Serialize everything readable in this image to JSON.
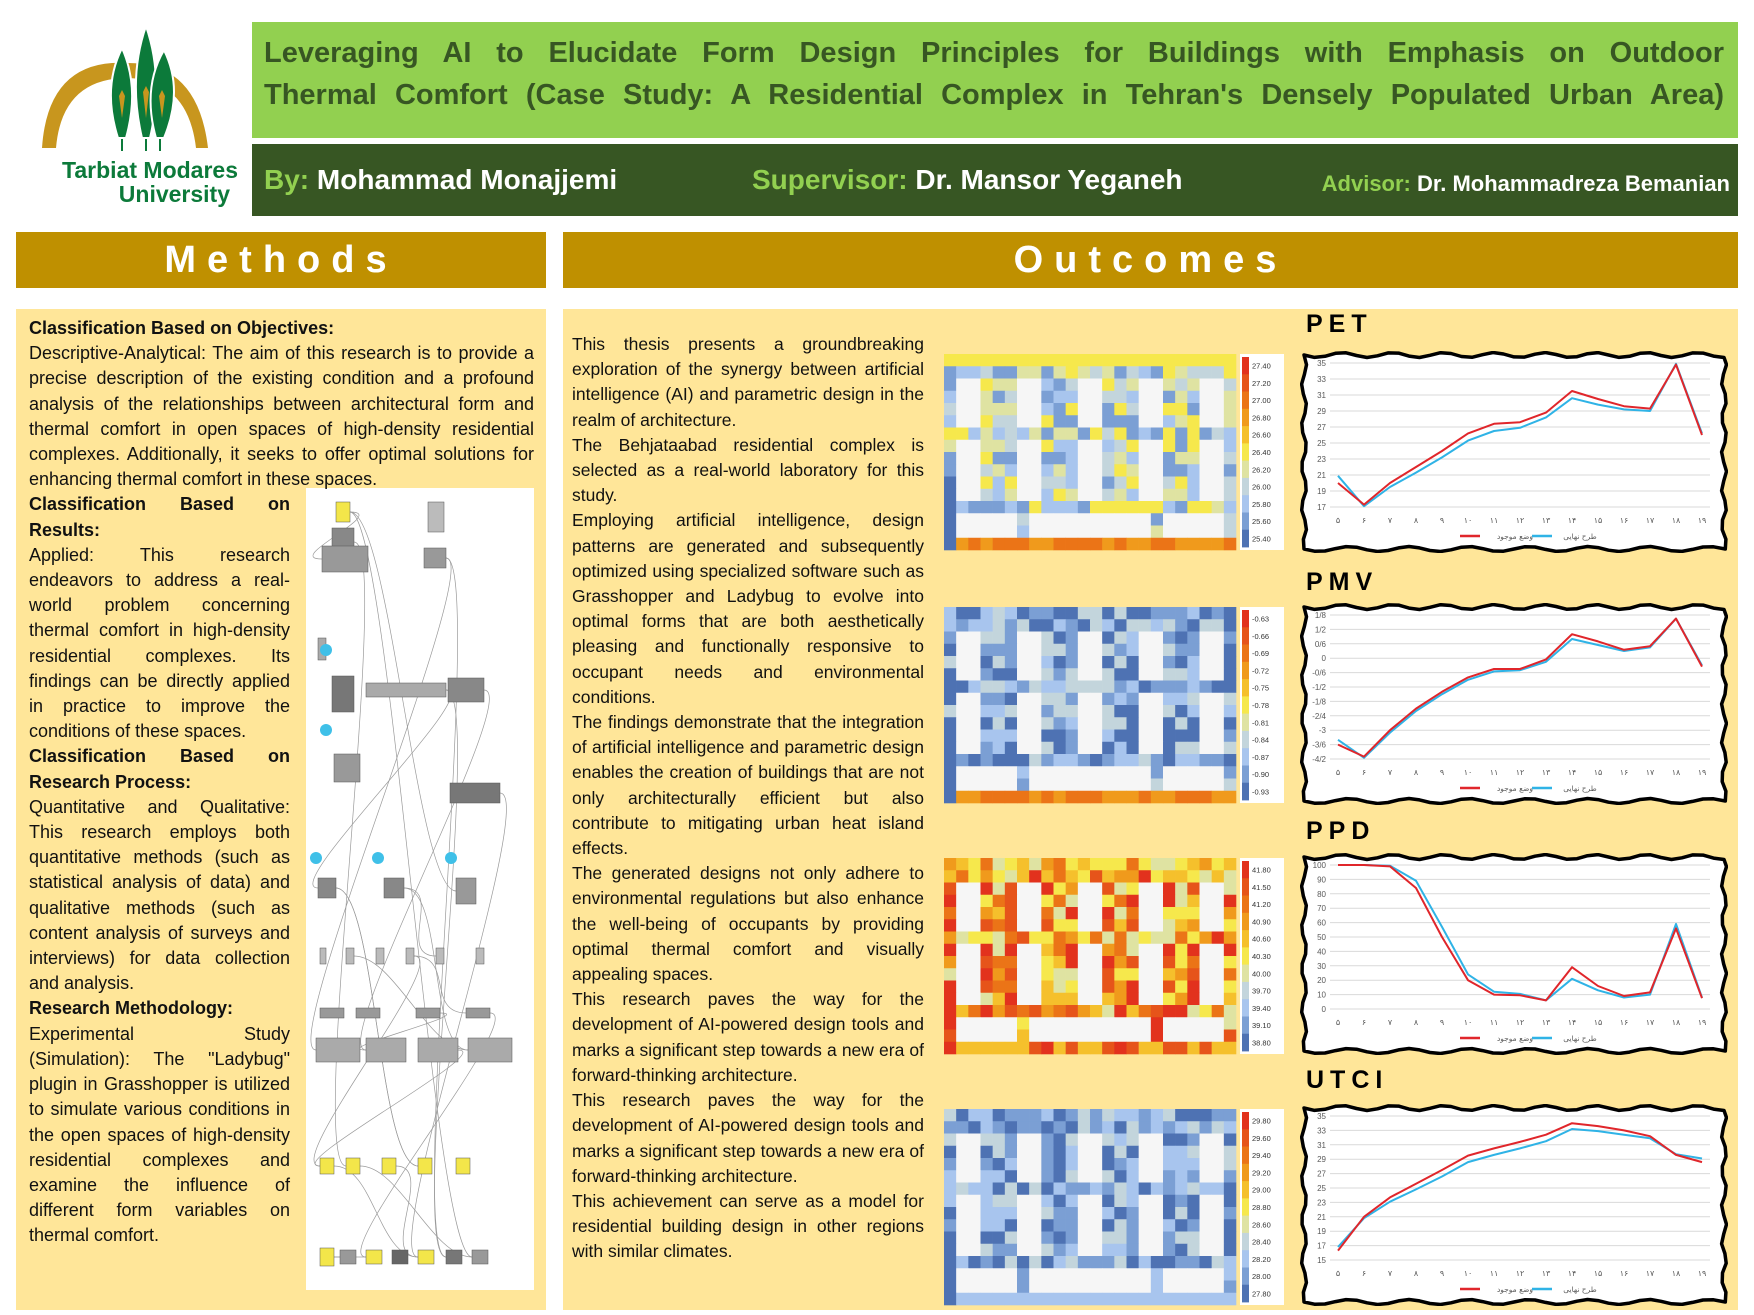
{
  "logo": {
    "text_line1": "Tarbiat Modares",
    "text_line2": "University",
    "colors": {
      "arch": "#c8961e",
      "tree": "#0c7a3a"
    }
  },
  "header": {
    "title_lines": [
      "Leveraging AI to Elucidate Form Design Principles for Buildings with Emphasis on Outdoor",
      "Thermal Comfort (Case Study: A Residential Complex in Tehran's Densely Populated Urban Area)"
    ],
    "by_label": "By:",
    "by_value": "Mohammad Monajjemi",
    "supervisor_label": "Supervisor:",
    "supervisor_value": "Dr. Mansor Yeganeh",
    "advisor_label": "Advisor:",
    "advisor_value": "Dr. Mohammadreza Bemanian"
  },
  "colors": {
    "title_bar": "#92d050",
    "author_bar": "#375623",
    "section_header": "#bf9000",
    "panel": "#ffe699",
    "series_existing": "#e0262b",
    "series_final": "#2fb3e6"
  },
  "methods": {
    "heading": "Methods",
    "sections": [
      {
        "title": "Classification Based on Objectives:",
        "body": "Descriptive-Analytical: The aim of this research is to provide a precise description of the existing condition and a profound analysis of the relationships between architectural form and thermal comfort in open spaces of high-density residential complexes. Additionally, it seeks to offer optimal solutions for enhancing thermal comfort in these spaces."
      },
      {
        "title": "Classification Based on Results:",
        "body": "Applied: This research endeavors to address a real-world problem concerning thermal comfort in high-density residential complexes. Its findings can be directly applied in practice to improve the conditions of these spaces."
      },
      {
        "title": "Classification Based on Research Process:",
        "body": "Quantitative and Qualitative: This research employs both quantitative methods (such as statistical analysis of data) and qualitative methods (such as content analysis of surveys and interviews) for data collection and analysis."
      },
      {
        "title": "Research Methodology:",
        "body": "Experimental Study (Simulation): The \"Ladybug\" plugin in Grasshopper is utilized to simulate various conditions in the open spaces of high-density residential complexes and examine the influence of different form variables on thermal comfort."
      }
    ]
  },
  "outcomes": {
    "heading": "Outcomes",
    "paragraphs": [
      "This thesis presents a groundbreaking exploration of the synergy between artificial intelligence (AI) and parametric design in the realm of architecture.",
      "The Behjataabad residential complex is selected as a real-world laboratory for this study.",
      "Employing artificial intelligence, design patterns are generated and subsequently optimized using specialized software such as Grasshopper and Ladybug to evolve into optimal forms that are both aesthetically pleasing and functionally responsive to occupant needs and environmental conditions.",
      "The findings demonstrate that the integration of artificial intelligence and parametric design enables the creation of buildings that are not only architecturally efficient but also contribute to mitigating urban heat island effects.",
      "The generated designs not only adhere to environmental regulations but also enhance the well-being of occupants by providing optimal thermal comfort and visually appealing spaces.",
      "This research paves the way for the development of AI-powered design tools and marks a significant step towards a new era of forward-thinking architecture.",
      "This research paves the way for the development of AI-powered design tools and marks a significant step towards a new era of forward-thinking architecture.",
      "This achievement can serve as a model for residential building design in other regions with similar climates."
    ],
    "heatmaps": [
      {
        "legend": [
          "27.40",
          "27.20",
          "27.00",
          "26.80",
          "26.60",
          "26.40",
          "26.20",
          "26.00",
          "25.80",
          "25.60",
          "25.40"
        ]
      },
      {
        "legend": [
          "-0.63",
          "-0.66",
          "-0.69",
          "-0.72",
          "-0.75",
          "-0.78",
          "-0.81",
          "-0.84",
          "-0.87",
          "-0.90",
          "-0.93"
        ]
      },
      {
        "legend": [
          "41.80",
          "41.50",
          "41.20",
          "40.90",
          "40.60",
          "40.30",
          "40.00",
          "39.70",
          "39.40",
          "39.10",
          "38.80"
        ]
      },
      {
        "legend": [
          "29.80",
          "29.60",
          "29.40",
          "29.20",
          "29.00",
          "28.80",
          "28.60",
          "28.40",
          "28.20",
          "28.00",
          "27.80"
        ]
      }
    ],
    "heatmap_palette": [
      "#e2321d",
      "#e6541a",
      "#eb7417",
      "#f09a1c",
      "#f5c02c",
      "#f6e84c",
      "#dfe3a2",
      "#c3d5dc",
      "#a8c5ee",
      "#7b9fd4",
      "#4e72b3"
    ]
  },
  "chart_data": [
    {
      "type": "line",
      "title": "PET",
      "categories": [
        "۵",
        "۶",
        "۷",
        "۸",
        "۹",
        "۱۰",
        "۱۱",
        "۱۲",
        "۱۳",
        "۱۴",
        "۱۵",
        "۱۶",
        "۱۷",
        "۱۸",
        "۱۹"
      ],
      "ylim": [
        17,
        35
      ],
      "yticks": [
        17,
        19,
        21,
        23,
        25,
        27,
        29,
        31,
        33,
        35
      ],
      "ytick_labels": [
        "17",
        "19",
        "21",
        "23",
        "25",
        "27",
        "29",
        "31",
        "33",
        "35"
      ],
      "grid": true,
      "legend": "bottom",
      "series": [
        {
          "name": "وضع موجود",
          "values": [
            20,
            17.3,
            20,
            22,
            24,
            26.2,
            27.4,
            27.6,
            28.8,
            31.5,
            30.5,
            29.6,
            29.3,
            34.8,
            26
          ]
        },
        {
          "name": "طرح نهایی",
          "values": [
            20.9,
            17.1,
            19.5,
            21.3,
            23.2,
            25.3,
            26.5,
            26.9,
            28.2,
            30.6,
            29.8,
            29.2,
            29,
            34.9,
            26.2
          ]
        }
      ]
    },
    {
      "type": "line",
      "title": "PMV",
      "categories": [
        "۵",
        "۶",
        "۷",
        "۸",
        "۹",
        "۱۰",
        "۱۱",
        "۱۲",
        "۱۳",
        "۱۴",
        "۱۵",
        "۱۶",
        "۱۷",
        "۱۸",
        "۱۹"
      ],
      "ylim": [
        -4.2,
        1.8
      ],
      "yticks": [
        -4.2,
        -3.6,
        -3,
        -2.4,
        -1.8,
        -1.2,
        -0.6,
        0,
        0.6,
        1.2,
        1.8
      ],
      "ytick_labels": [
        "-4/2",
        "-3/6",
        "-3",
        "-2/4",
        "-1/8",
        "-1/2",
        "-0/6",
        "0",
        "0/6",
        "1/2",
        "1/8"
      ],
      "grid": true,
      "legend": "bottom",
      "series": [
        {
          "name": "وضع موجود",
          "values": [
            -3.6,
            -4.1,
            -3.0,
            -2.1,
            -1.4,
            -0.8,
            -0.45,
            -0.45,
            -0.05,
            1.0,
            0.7,
            0.35,
            0.5,
            1.65,
            -0.35
          ]
        },
        {
          "name": "طرح نهایی",
          "values": [
            -3.4,
            -4.15,
            -3.1,
            -2.2,
            -1.5,
            -0.9,
            -0.55,
            -0.5,
            -0.15,
            0.8,
            0.55,
            0.3,
            0.45,
            1.65,
            -0.3
          ]
        }
      ]
    },
    {
      "type": "line",
      "title": "PPD",
      "categories": [
        "۵",
        "۶",
        "۷",
        "۸",
        "۹",
        "۱۰",
        "۱۱",
        "۱۲",
        "۱۳",
        "۱۴",
        "۱۵",
        "۱۶",
        "۱۷",
        "۱۸",
        "۱۹"
      ],
      "ylim": [
        0,
        100
      ],
      "yticks": [
        0,
        10,
        20,
        30,
        40,
        50,
        60,
        70,
        80,
        90,
        100
      ],
      "ytick_labels": [
        "0",
        "10",
        "20",
        "30",
        "40",
        "50",
        "60",
        "70",
        "80",
        "90",
        "100"
      ],
      "grid": true,
      "legend": "bottom",
      "series": [
        {
          "name": "وضع موجود",
          "values": [
            100,
            100,
            99,
            84,
            50,
            20,
            10,
            9.5,
            6,
            29,
            16,
            9,
            11.5,
            56,
            7.5
          ]
        },
        {
          "name": "طرح نهایی",
          "values": [
            100,
            100,
            99.5,
            89,
            57,
            24,
            12,
            10.5,
            6,
            21,
            13,
            8,
            10,
            59,
            8
          ]
        }
      ]
    },
    {
      "type": "line",
      "title": "UTCI",
      "categories": [
        "۵",
        "۶",
        "۷",
        "۸",
        "۹",
        "۱۰",
        "۱۱",
        "۱۲",
        "۱۳",
        "۱۴",
        "۱۵",
        "۱۶",
        "۱۷",
        "۱۸",
        "۱۹"
      ],
      "ylim": [
        15,
        35
      ],
      "yticks": [
        15,
        17,
        19,
        21,
        23,
        25,
        27,
        29,
        31,
        33,
        35
      ],
      "ytick_labels": [
        "15",
        "17",
        "19",
        "21",
        "23",
        "25",
        "27",
        "29",
        "31",
        "33",
        "35"
      ],
      "grid": true,
      "legend": "bottom",
      "series": [
        {
          "name": "وضع موجود",
          "values": [
            16.3,
            21,
            23.7,
            25.6,
            27.5,
            29.5,
            30.5,
            31.4,
            32.4,
            34,
            33.6,
            33,
            32.2,
            29.6,
            28.6
          ]
        },
        {
          "name": "طرح نهایی",
          "values": [
            16.8,
            20.8,
            23.1,
            24.8,
            26.6,
            28.6,
            29.6,
            30.5,
            31.5,
            33.2,
            32.9,
            32.4,
            31.9,
            29.7,
            29.1
          ]
        }
      ]
    }
  ]
}
